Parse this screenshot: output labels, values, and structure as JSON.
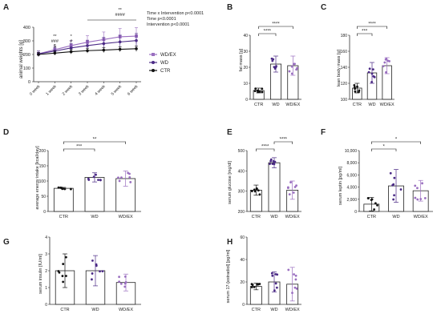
{
  "colors": {
    "ctr": "#111111",
    "wd": "#4b2a86",
    "wdex": "#9a6fc0",
    "axis": "#333333",
    "sig": "#111111"
  },
  "chart_data": [
    {
      "panel": "A",
      "type": "line",
      "ylabel": "animal weights [g]",
      "categories": [
        "0 week",
        "1 week",
        "2 week",
        "3 week",
        "4 week",
        "5 week",
        "6 week"
      ],
      "ylim": [
        0,
        400
      ],
      "yticks": [
        0,
        100,
        200,
        300,
        400
      ],
      "series": [
        {
          "name": "WD/EX",
          "key": "wdex",
          "values": [
            205,
            235,
            265,
            290,
            310,
            330,
            335
          ],
          "err": [
            20,
            28,
            38,
            48,
            55,
            60,
            62
          ]
        },
        {
          "name": "WD",
          "key": "wd",
          "values": [
            205,
            225,
            248,
            265,
            280,
            292,
            302
          ],
          "err": [
            20,
            25,
            32,
            40,
            45,
            50,
            52
          ]
        },
        {
          "name": "CTR",
          "key": "ctr",
          "values": [
            200,
            210,
            220,
            228,
            232,
            238,
            242
          ],
          "err": [
            15,
            15,
            16,
            18,
            18,
            18,
            20
          ]
        }
      ],
      "annotations": [
        {
          "ci": 1,
          "lines": [
            "**",
            "###",
            "$"
          ]
        },
        {
          "ci": 2,
          "lines": [
            "*",
            "#"
          ]
        },
        {
          "ci": 5,
          "lines": [
            "**",
            "####"
          ]
        }
      ],
      "stats_text": [
        "Time x Intervention p<0.0001",
        "Time p<0.0001",
        "Intervention p<0.0001"
      ]
    },
    {
      "panel": "B",
      "type": "bar",
      "ylabel": "fat mass [g]",
      "categories": [
        "CTR",
        "WD",
        "WD/EX"
      ],
      "values": [
        5.5,
        22,
        21
      ],
      "errors": [
        1.5,
        5,
        6
      ],
      "ylim": [
        0,
        40
      ],
      "yticks": [
        0,
        10,
        20,
        30,
        40
      ],
      "sig": [
        {
          "a": 0,
          "b": 1,
          "label": "****"
        },
        {
          "a": 0,
          "b": 2,
          "label": "****"
        }
      ]
    },
    {
      "panel": "C",
      "type": "bar",
      "ylabel": "lean body mass [g]",
      "categories": [
        "CTR",
        "WD",
        "WD/EX"
      ],
      "values": [
        114,
        133,
        142
      ],
      "errors": [
        6,
        13,
        10
      ],
      "ylim": [
        100,
        180
      ],
      "yticks": [
        100,
        120,
        140,
        160,
        180
      ],
      "sig": [
        {
          "a": 0,
          "b": 1,
          "label": "***"
        },
        {
          "a": 0,
          "b": 2,
          "label": "****"
        }
      ]
    },
    {
      "panel": "D",
      "type": "bar",
      "ylabel": "average energy intake [kcal/day]",
      "categories": [
        "CTR",
        "WD",
        "WD/EX"
      ],
      "values": [
        76,
        112,
        108
      ],
      "errors": [
        3,
        15,
        25
      ],
      "ylim": [
        0,
        200
      ],
      "yticks": [
        0,
        50,
        100,
        150,
        200
      ],
      "sig": [
        {
          "a": 0,
          "b": 1,
          "label": "***"
        },
        {
          "a": 0,
          "b": 2,
          "label": "**"
        }
      ]
    },
    {
      "panel": "E",
      "type": "bar",
      "ylabel": "serum glucose [mg/dl]",
      "categories": [
        "CTR",
        "WD",
        "WD/EX"
      ],
      "values": [
        305,
        440,
        305
      ],
      "errors": [
        25,
        25,
        45
      ],
      "ylim": [
        200,
        500
      ],
      "yticks": [
        200,
        300,
        400,
        500
      ],
      "sig": [
        {
          "a": 0,
          "b": 1,
          "label": "****"
        },
        {
          "a": 1,
          "b": 2,
          "label": "****"
        }
      ]
    },
    {
      "panel": "F",
      "type": "bar",
      "ylabel": "serum leptin [pg/ml]",
      "categories": [
        "CTR",
        "WD",
        "WD/EX"
      ],
      "values": [
        1200,
        4200,
        3400
      ],
      "errors": [
        1100,
        2700,
        1700
      ],
      "ylim": [
        0,
        10000
      ],
      "yticks": [
        0,
        2000,
        4000,
        6000,
        8000,
        10000
      ],
      "yticklabels": [
        "0",
        "2,000",
        "4,000",
        "6,000",
        "8,000",
        "10,000"
      ],
      "sig": [
        {
          "a": 0,
          "b": 1,
          "label": "*"
        },
        {
          "a": 0,
          "b": 2,
          "label": "*"
        }
      ]
    },
    {
      "panel": "G",
      "type": "bar",
      "ylabel": "serum insulin [IU/ml]",
      "categories": [
        "CTR",
        "WD",
        "WD/EX"
      ],
      "values": [
        2.0,
        2.0,
        1.3
      ],
      "errors": [
        1.0,
        0.9,
        0.5
      ],
      "ylim": [
        0,
        4
      ],
      "yticks": [
        0,
        1,
        2,
        3,
        4
      ],
      "sig": []
    },
    {
      "panel": "H",
      "type": "bar",
      "ylabel": "serum 17-[estradiol] [pg/ml]",
      "categories": [
        "CTR",
        "WD",
        "WD/EX"
      ],
      "values": [
        16,
        20,
        18
      ],
      "errors": [
        3,
        9,
        15
      ],
      "ylim": [
        0,
        60
      ],
      "yticks": [
        0,
        20,
        40,
        60
      ],
      "sig": []
    }
  ]
}
